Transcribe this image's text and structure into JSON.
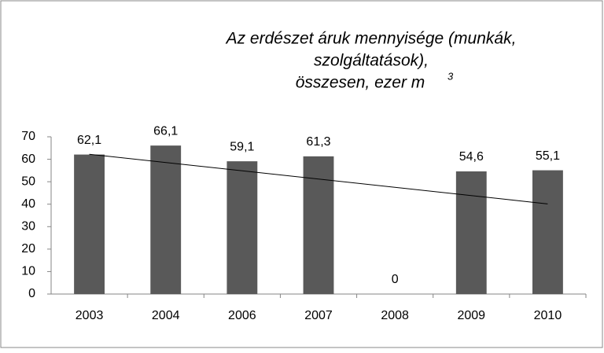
{
  "chart_data": {
    "type": "bar",
    "title": [
      "Az erdészet áruk mennyisége (munkák,",
      "szolgáltatások),",
      "összesen, ezer m"
    ],
    "title_superscript": "3",
    "categories": [
      "2003",
      "2004",
      "2006",
      "2007",
      "2008",
      "2009",
      "2010"
    ],
    "values": [
      62.1,
      66.1,
      59.1,
      61.3,
      0,
      54.6,
      55.1
    ],
    "value_labels": [
      "62,1",
      "66,1",
      "59,1",
      "61,3",
      "0",
      "54,6",
      "55,1"
    ],
    "color": "#595959",
    "trendline": "linear",
    "ylim": [
      0,
      70
    ],
    "yticks": [
      0,
      10,
      20,
      30,
      40,
      50,
      60,
      70
    ],
    "grid": false
  }
}
